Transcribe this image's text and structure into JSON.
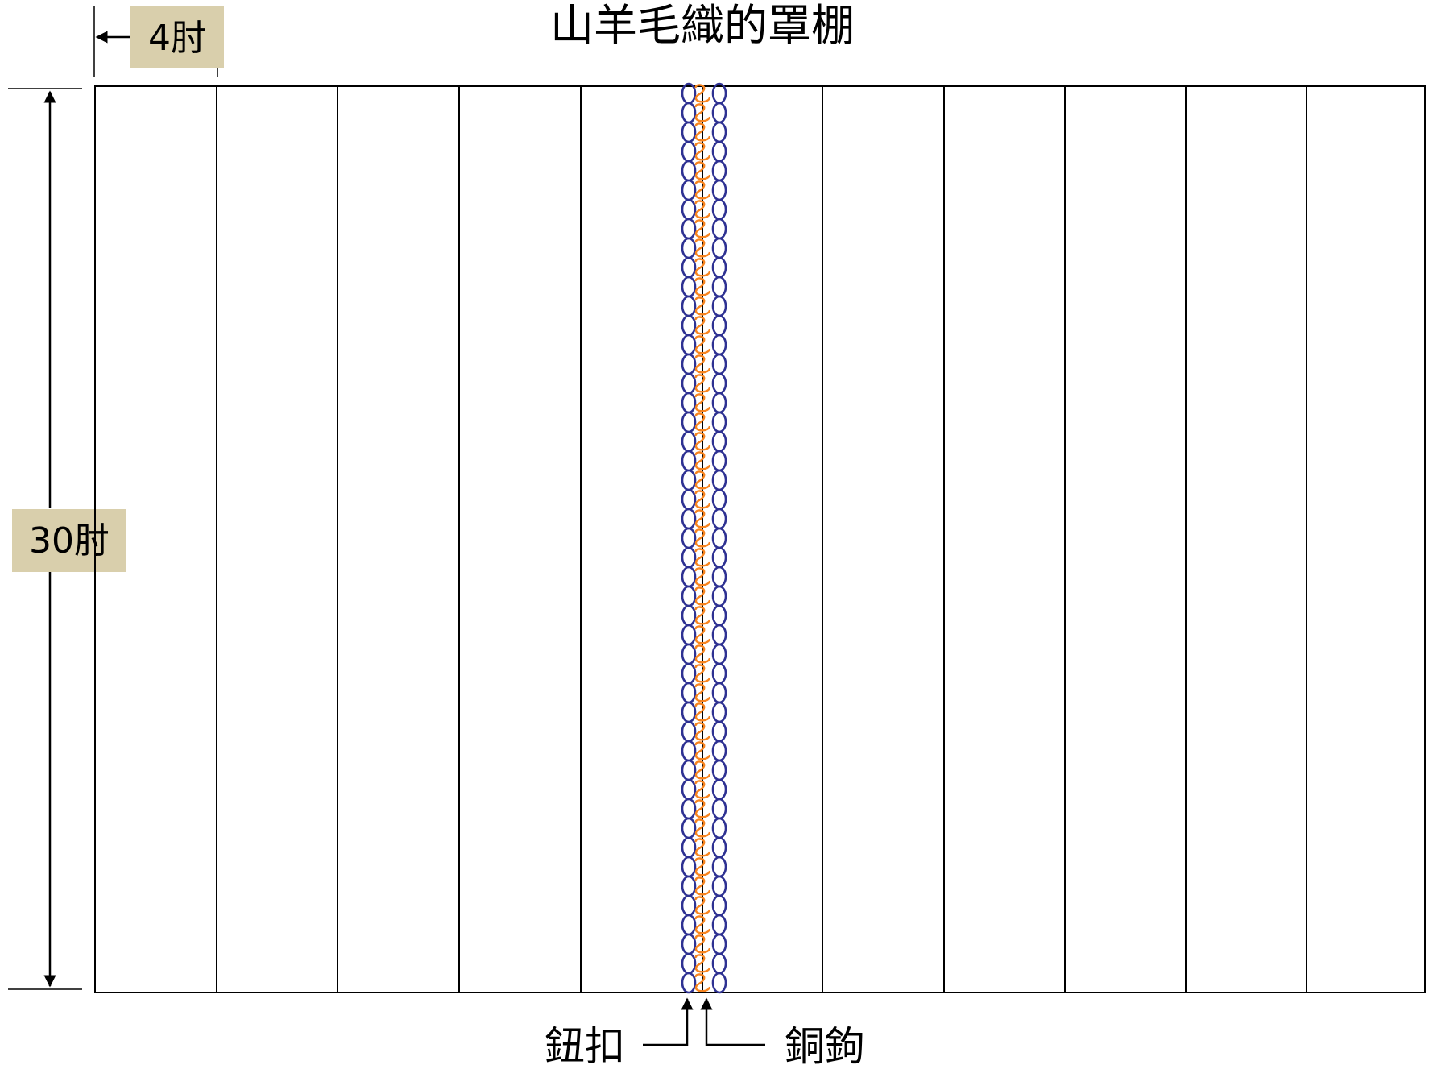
{
  "title": "山羊毛織的罩棚",
  "dimensions": {
    "width_label": "4肘",
    "height_label": "30肘"
  },
  "callouts": {
    "loops_label": "鈕扣",
    "clasps_label": "銅鉤"
  },
  "panels": {
    "count": 11,
    "joined_between": [
      5,
      6
    ]
  },
  "colors": {
    "loops": "#2e3192",
    "clasps": "#f7841f",
    "label_background": "#d9cfac",
    "lines": "#000000"
  }
}
